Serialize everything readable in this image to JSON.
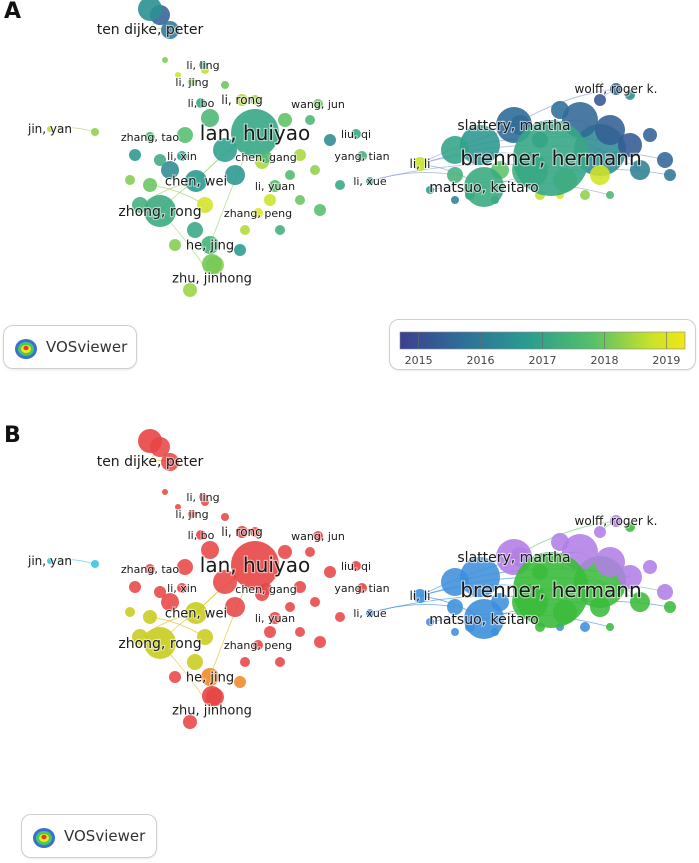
{
  "panels": [
    {
      "letter": "A",
      "mode": "overlay-year"
    },
    {
      "letter": "B",
      "mode": "cluster"
    }
  ],
  "logo": {
    "text": "VOSviewer"
  },
  "legend": {
    "ticks": [
      "2015",
      "2016",
      "2017",
      "2018",
      "2019"
    ],
    "range": [
      2014.7,
      2019.3
    ],
    "colors": [
      "#3b3f8f",
      "#2f6e98",
      "#2a9d8f",
      "#58c06a",
      "#c9e22a",
      "#f2e51a"
    ]
  },
  "cluster_colors": {
    "red": "#e84545",
    "green": "#3bbb3b",
    "blue": "#3d8fdb",
    "yellow": "#c9cc1f",
    "purple": "#b27ee6",
    "cyan": "#35c6dc",
    "orange": "#f08a2a"
  },
  "authors": [
    {
      "name": "ten dijke, peter",
      "year": 2016.3,
      "cluster": "red",
      "weight": 2
    },
    {
      "name": "li, ling",
      "year": 2016.5,
      "cluster": "red",
      "weight": 1
    },
    {
      "name": "li, jing",
      "year": 2017.8,
      "cluster": "red",
      "weight": 1
    },
    {
      "name": "li, bo",
      "year": 2016.8,
      "cluster": "red",
      "weight": 1
    },
    {
      "name": "li, rong",
      "year": 2018.2,
      "cluster": "red",
      "weight": 1
    },
    {
      "name": "wang, jun",
      "year": 2017.6,
      "cluster": "red",
      "weight": 1
    },
    {
      "name": "jin, yan",
      "year": 2018.3,
      "cluster": "cyan",
      "weight": 1
    },
    {
      "name": "zhang, tao",
      "year": 2017.2,
      "cluster": "red",
      "weight": 1
    },
    {
      "name": "lan, huiyao",
      "year": 2016.8,
      "cluster": "red",
      "weight": 5
    },
    {
      "name": "liu, qi",
      "year": 2016.8,
      "cluster": "red",
      "weight": 1
    },
    {
      "name": "li, xin",
      "year": 2016.6,
      "cluster": "red",
      "weight": 1
    },
    {
      "name": "chen, gang",
      "year": 2017.3,
      "cluster": "red",
      "weight": 1
    },
    {
      "name": "yang, tian",
      "year": 2017.1,
      "cluster": "red",
      "weight": 1
    },
    {
      "name": "chen, wei",
      "year": 2016.5,
      "cluster": "yellow",
      "weight": 2
    },
    {
      "name": "li, yuan",
      "year": 2017.4,
      "cluster": "red",
      "weight": 1
    },
    {
      "name": "zhang, peng",
      "year": 2018.9,
      "cluster": "red",
      "weight": 1
    },
    {
      "name": "zhong, rong",
      "year": 2016.9,
      "cluster": "yellow",
      "weight": 3
    },
    {
      "name": "he, jing",
      "year": 2017.1,
      "cluster": "orange",
      "weight": 2
    },
    {
      "name": "zhu, jinhong",
      "year": 2017.7,
      "cluster": "red",
      "weight": 2
    },
    {
      "name": "wolff, roger k.",
      "year": 2015.4,
      "cluster": "purple",
      "weight": 1
    },
    {
      "name": "slattery, martha",
      "year": 2015.6,
      "cluster": "purple",
      "weight": 3
    },
    {
      "name": "li, li",
      "year": 2018.4,
      "cluster": "blue",
      "weight": 1
    },
    {
      "name": "brenner, hermann",
      "year": 2016.8,
      "cluster": "green",
      "weight": 5
    },
    {
      "name": "li, xue",
      "year": 2016.8,
      "cluster": "blue",
      "weight": 1
    },
    {
      "name": "matsuo, keitaro",
      "year": 2016.9,
      "cluster": "blue",
      "weight": 3
    }
  ]
}
